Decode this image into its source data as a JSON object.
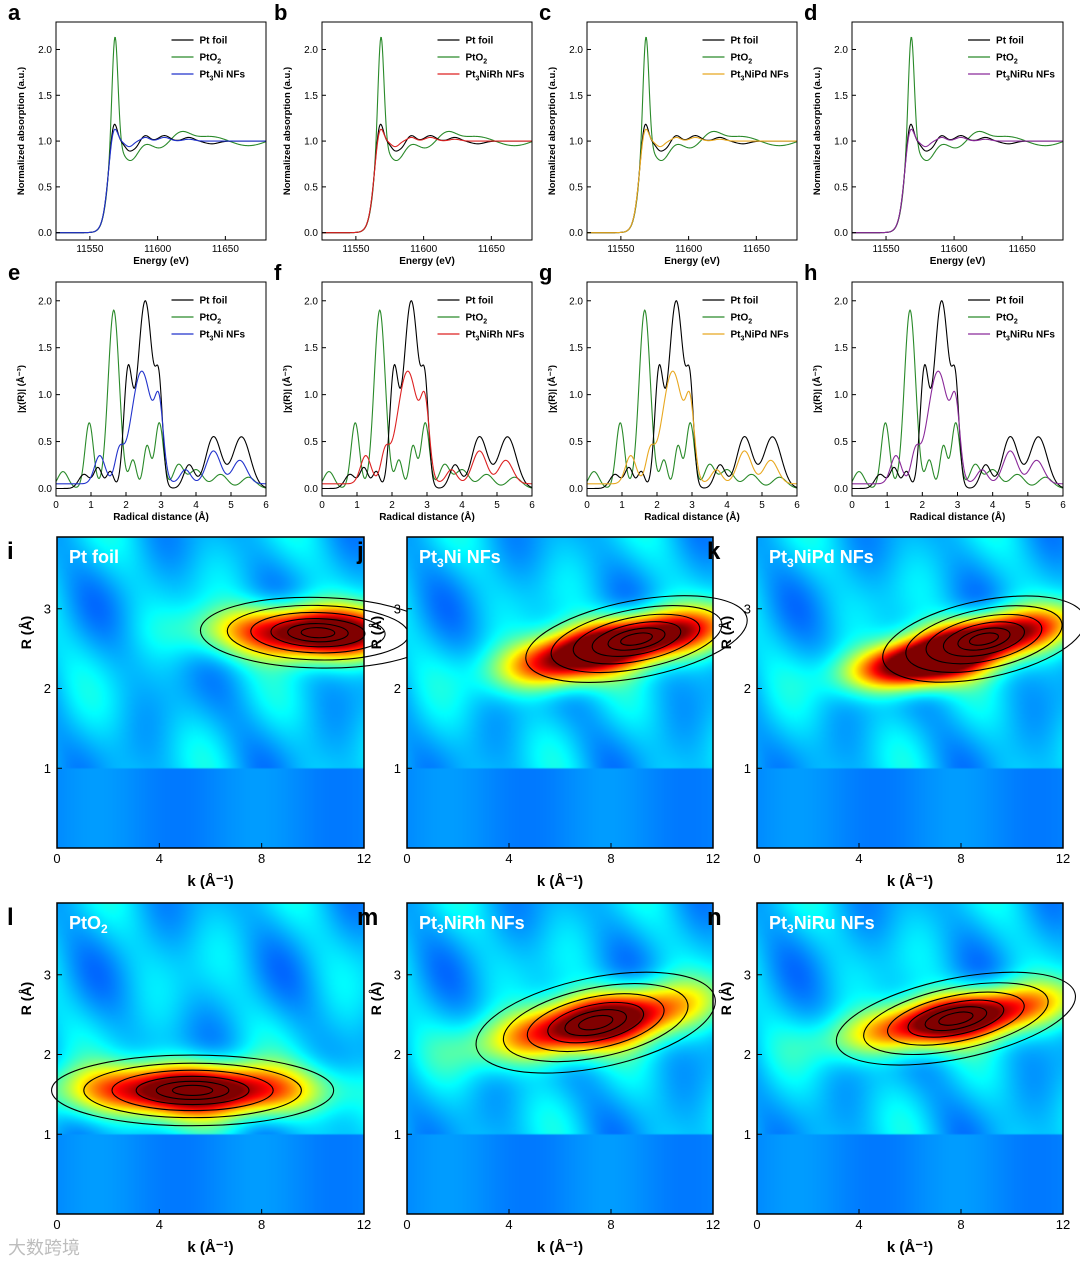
{
  "colors": {
    "pt_foil": "#000000",
    "pto2": "#2a8a2a",
    "pt3ni": "#2233cc",
    "pt3nirh": "#dd2222",
    "pt3nipd": "#e8a820",
    "pt3niru": "#8a2a9a"
  },
  "watermark": "大数跨境",
  "chart_data": [
    {
      "id": "a",
      "type": "line",
      "panel_letter": "a",
      "xlabel": "Energy (eV)",
      "ylabel": "Normalized absorption (a.u.)",
      "xlim": [
        11525,
        11680
      ],
      "ylim": [
        -0.08,
        2.3
      ],
      "xticks": [
        "11550",
        "11600",
        "11650"
      ],
      "yticks": [
        "0.0",
        "0.5",
        "1.0",
        "1.5",
        "2.0"
      ],
      "legend": [
        "Pt foil",
        "PtO2",
        "Pt3Ni NFs"
      ],
      "sample_color": "pt3ni"
    },
    {
      "id": "b",
      "type": "line",
      "panel_letter": "b",
      "xlabel": "Energy (eV)",
      "ylabel": "Normalized absorption (a.u.)",
      "xlim": [
        11525,
        11680
      ],
      "ylim": [
        -0.08,
        2.3
      ],
      "xticks": [
        "11550",
        "11600",
        "11650"
      ],
      "yticks": [
        "0.0",
        "0.5",
        "1.0",
        "1.5",
        "2.0"
      ],
      "legend": [
        "Pt foil",
        "PtO2",
        "Pt3NiRh NFs"
      ],
      "sample_color": "pt3nirh"
    },
    {
      "id": "c",
      "type": "line",
      "panel_letter": "c",
      "xlabel": "Energy (eV)",
      "ylabel": "Normalized absorption (a.u.)",
      "xlim": [
        11525,
        11680
      ],
      "ylim": [
        -0.08,
        2.3
      ],
      "xticks": [
        "11550",
        "11600",
        "11650"
      ],
      "yticks": [
        "0.0",
        "0.5",
        "1.0",
        "1.5",
        "2.0"
      ],
      "legend": [
        "Pt foil",
        "PtO2",
        "Pt3NiPd NFs"
      ],
      "sample_color": "pt3nipd"
    },
    {
      "id": "d",
      "type": "line",
      "panel_letter": "d",
      "xlabel": "Energy (eV)",
      "ylabel": "Normalized absorption (a.u.)",
      "xlim": [
        11525,
        11680
      ],
      "ylim": [
        -0.08,
        2.3
      ],
      "xticks": [
        "11550",
        "11600",
        "11650"
      ],
      "yticks": [
        "0.0",
        "0.5",
        "1.0",
        "1.5",
        "2.0"
      ],
      "legend": [
        "Pt foil",
        "PtO2",
        "Pt3NiRu NFs"
      ],
      "sample_color": "pt3niru"
    },
    {
      "id": "e",
      "type": "line",
      "panel_letter": "e",
      "xlabel": "Radical distance (Å)",
      "ylabel": "|χ(R)| (Å⁻³)",
      "xlim": [
        0,
        6
      ],
      "ylim": [
        -0.08,
        2.2
      ],
      "xticks": [
        "0",
        "1",
        "2",
        "3",
        "4",
        "5",
        "6"
      ],
      "yticks": [
        "0.0",
        "0.5",
        "1.0",
        "1.5",
        "2.0"
      ],
      "legend": [
        "Pt foil",
        "PtO2",
        "Pt3Ni NFs"
      ],
      "sample_color": "pt3ni"
    },
    {
      "id": "f",
      "type": "line",
      "panel_letter": "f",
      "xlabel": "Radical distance (Å)",
      "ylabel": "|χ(R)| (Å⁻³)",
      "xlim": [
        0,
        6
      ],
      "ylim": [
        -0.08,
        2.2
      ],
      "xticks": [
        "0",
        "1",
        "2",
        "3",
        "4",
        "5",
        "6"
      ],
      "yticks": [
        "0.0",
        "0.5",
        "1.0",
        "1.5",
        "2.0"
      ],
      "legend": [
        "Pt foil",
        "PtO2",
        "Pt3NiRh NFs"
      ],
      "sample_color": "pt3nirh"
    },
    {
      "id": "g",
      "type": "line",
      "panel_letter": "g",
      "xlabel": "Radical distance (Å)",
      "ylabel": "|χ(R)| (Å⁻³)",
      "xlim": [
        0,
        6
      ],
      "ylim": [
        -0.08,
        2.2
      ],
      "xticks": [
        "0",
        "1",
        "2",
        "3",
        "4",
        "5",
        "6"
      ],
      "yticks": [
        "0.0",
        "0.5",
        "1.0",
        "1.5",
        "2.0"
      ],
      "legend": [
        "Pt foil",
        "PtO2",
        "Pt3NiPd NFs"
      ],
      "sample_color": "pt3nipd"
    },
    {
      "id": "h",
      "type": "line",
      "panel_letter": "h",
      "xlabel": "Radical distance (Å)",
      "ylabel": "|χ(R)| (Å⁻³)",
      "xlim": [
        0,
        6
      ],
      "ylim": [
        -0.08,
        2.2
      ],
      "xticks": [
        "0",
        "1",
        "2",
        "3",
        "4",
        "5",
        "6"
      ],
      "yticks": [
        "0.0",
        "0.5",
        "1.0",
        "1.5",
        "2.0"
      ],
      "legend": [
        "Pt foil",
        "PtO2",
        "Pt3NiRu NFs"
      ],
      "sample_color": "pt3niru"
    },
    {
      "id": "i",
      "type": "heatmap",
      "panel_letter": "i",
      "title": "Pt foil",
      "xlabel": "k (Å⁻¹)",
      "ylabel": "R (Å)",
      "xlim": [
        0,
        12
      ],
      "ylim": [
        0,
        3.9
      ],
      "xticks": [
        "0",
        "4",
        "8",
        "12"
      ],
      "yticks": [
        "1",
        "2",
        "3"
      ],
      "peaks": [
        {
          "k": 10.2,
          "R": 2.7,
          "a": 1.0,
          "sk": 2.5,
          "sr": 0.22,
          "rho": -0.05
        }
      ]
    },
    {
      "id": "j",
      "type": "heatmap",
      "panel_letter": "j",
      "title": "Pt3Ni NFs",
      "xlabel": "k (Å⁻¹)",
      "ylabel": "R (Å)",
      "xlim": [
        0,
        12
      ],
      "ylim": [
        0,
        3.9
      ],
      "xticks": [
        "0",
        "4",
        "8",
        "12"
      ],
      "yticks": [
        "1",
        "2",
        "3"
      ],
      "peaks": [
        {
          "k": 9.0,
          "R": 2.62,
          "a": 1.0,
          "sk": 2.4,
          "sr": 0.24,
          "rho": 0.5
        },
        {
          "k": 6.0,
          "R": 2.3,
          "a": 0.55,
          "sk": 1.6,
          "sr": 0.22,
          "rho": 0.3
        }
      ]
    },
    {
      "id": "k",
      "type": "heatmap",
      "panel_letter": "k",
      "title": "Pt3NiPd NFs",
      "xlabel": "k (Å⁻¹)",
      "ylabel": "R (Å)",
      "xlim": [
        0,
        12
      ],
      "ylim": [
        0,
        3.9
      ],
      "xticks": [
        "0",
        "4",
        "8",
        "12"
      ],
      "yticks": [
        "1",
        "2",
        "3"
      ],
      "peaks": [
        {
          "k": 8.9,
          "R": 2.62,
          "a": 1.0,
          "sk": 2.2,
          "sr": 0.24,
          "rho": 0.55
        },
        {
          "k": 6.3,
          "R": 2.28,
          "a": 0.85,
          "sk": 1.7,
          "sr": 0.2,
          "rho": 0.3
        }
      ]
    },
    {
      "id": "l",
      "type": "heatmap",
      "panel_letter": "l",
      "title": "PtO2",
      "xlabel": "k (Å⁻¹)",
      "ylabel": "R (Å)",
      "xlim": [
        0,
        12
      ],
      "ylim": [
        0,
        3.9
      ],
      "xticks": [
        "0",
        "4",
        "8",
        "12"
      ],
      "yticks": [
        "1",
        "2",
        "3"
      ],
      "peaks": [
        {
          "k": 5.3,
          "R": 1.55,
          "a": 1.0,
          "sk": 3.0,
          "sr": 0.22,
          "rho": 0.0
        }
      ]
    },
    {
      "id": "m",
      "type": "heatmap",
      "panel_letter": "m",
      "title": "Pt3NiRh NFs",
      "xlabel": "k (Å⁻¹)",
      "ylabel": "R (Å)",
      "xlim": [
        0,
        12
      ],
      "ylim": [
        0,
        3.9
      ],
      "xticks": [
        "0",
        "4",
        "8",
        "12"
      ],
      "yticks": [
        "1",
        "2",
        "3"
      ],
      "peaks": [
        {
          "k": 7.4,
          "R": 2.4,
          "a": 1.0,
          "sk": 2.6,
          "sr": 0.28,
          "rho": 0.55
        }
      ]
    },
    {
      "id": "n",
      "type": "heatmap",
      "panel_letter": "n",
      "title": "Pt3NiRu NFs",
      "xlabel": "k (Å⁻¹)",
      "ylabel": "R (Å)",
      "xlim": [
        0,
        12
      ],
      "ylim": [
        0,
        3.9
      ],
      "xticks": [
        "0",
        "4",
        "8",
        "12"
      ],
      "yticks": [
        "1",
        "2",
        "3"
      ],
      "peaks": [
        {
          "k": 7.8,
          "R": 2.45,
          "a": 1.0,
          "sk": 2.6,
          "sr": 0.25,
          "rho": 0.55
        }
      ]
    }
  ]
}
